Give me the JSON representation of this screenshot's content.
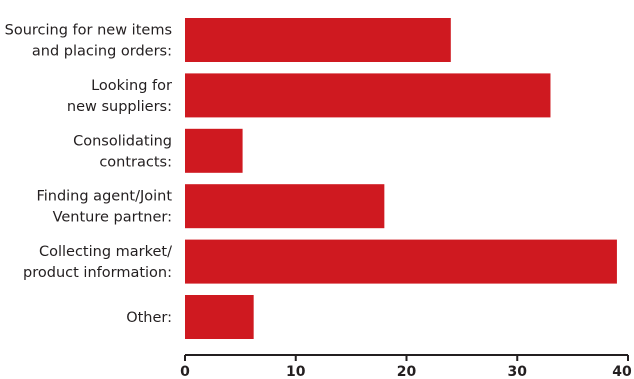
{
  "chart_data": {
    "type": "bar",
    "orientation": "horizontal",
    "categories": [
      [
        "Sourcing for new items",
        "and placing orders:"
      ],
      [
        "Looking for",
        "new suppliers:"
      ],
      [
        "Consolidating",
        "contracts:"
      ],
      [
        "Finding agent/Joint",
        "Venture partner:"
      ],
      [
        "Collecting market/",
        "product information:"
      ],
      [
        "Other:"
      ]
    ],
    "values": [
      24,
      33,
      5.2,
      18,
      39,
      6.2
    ],
    "xlim": [
      0,
      40
    ],
    "xticks": [
      0,
      10,
      20,
      30,
      40
    ],
    "bar_color": "#cf1920",
    "axis_color": "#231f20",
    "grid": false,
    "legend": "none"
  }
}
